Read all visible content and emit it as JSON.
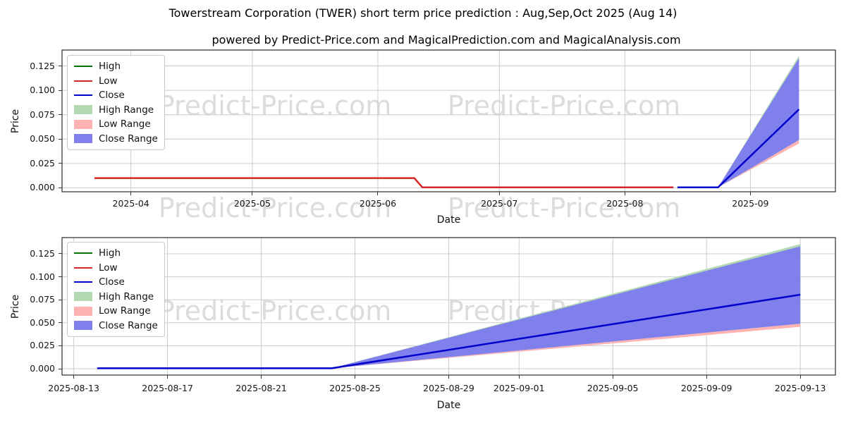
{
  "title": "Towerstream Corporation (TWER) short term price prediction : Aug,Sep,Oct 2025 (Aug 14)",
  "subtitle": "powered by Predict-Price.com and MagicalPrediction.com and MagicalAnalysis.com",
  "watermark": {
    "text": "Predict-Price.com",
    "color": "#dcdcdc"
  },
  "colors": {
    "high_line": "#007000",
    "low_line": "#d62728",
    "close_line": "#0000cd",
    "high_range_fill": "#b2d9b2",
    "low_range_fill": "#ffb2b2",
    "close_range_fill": "#7f80eb",
    "grid": "#cccccc",
    "frame": "#2b2b2b"
  },
  "legend": {
    "items": [
      {
        "label": "High",
        "type": "line",
        "color": "#007000"
      },
      {
        "label": "Low",
        "type": "line",
        "color": "#d62728"
      },
      {
        "label": "Close",
        "type": "line",
        "color": "#0000cd"
      },
      {
        "label": "High Range",
        "type": "patch",
        "color": "#b2d9b2"
      },
      {
        "label": "Low Range",
        "type": "patch",
        "color": "#ffb2b2"
      },
      {
        "label": "Close Range",
        "type": "patch",
        "color": "#7f80eb"
      }
    ]
  },
  "chart_data": [
    {
      "type": "line",
      "name": "history-and-prediction",
      "xlabel": "Date",
      "ylabel": "Price",
      "grid": true,
      "legend_position": "upper left",
      "xlim": [
        "2025-03-15",
        "2025-09-22"
      ],
      "ylim": [
        -0.004,
        0.1413
      ],
      "xticks": [
        {
          "date": "2025-04-01",
          "label": "2025-04"
        },
        {
          "date": "2025-05-01",
          "label": "2025-05"
        },
        {
          "date": "2025-06-01",
          "label": "2025-06"
        },
        {
          "date": "2025-07-01",
          "label": "2025-07"
        },
        {
          "date": "2025-08-01",
          "label": "2025-08"
        },
        {
          "date": "2025-09-01",
          "label": "2025-09"
        }
      ],
      "yticks": [
        {
          "value": 0.0,
          "label": "0.000"
        },
        {
          "value": 0.025,
          "label": "0.025"
        },
        {
          "value": 0.05,
          "label": "0.050"
        },
        {
          "value": 0.075,
          "label": "0.075"
        },
        {
          "value": 0.1,
          "label": "0.100"
        },
        {
          "value": 0.125,
          "label": "0.125"
        }
      ],
      "bands": [
        {
          "name": "Low Range",
          "color": "#ffb2b2",
          "upper": [
            [
              "2025-08-24",
              0.0005
            ],
            [
              "2025-09-13",
              0.049
            ]
          ],
          "lower": [
            [
              "2025-08-24",
              0.0005
            ],
            [
              "2025-09-13",
              0.0455
            ]
          ]
        },
        {
          "name": "High Range",
          "color": "#b2d9b2",
          "upper": [
            [
              "2025-08-24",
              0.0005
            ],
            [
              "2025-09-13",
              0.1355
            ]
          ],
          "lower": [
            [
              "2025-08-24",
              0.0005
            ],
            [
              "2025-09-13",
              0.049
            ]
          ]
        },
        {
          "name": "Close Range",
          "color": "#7f80eb",
          "upper": [
            [
              "2025-08-24",
              0.0005
            ],
            [
              "2025-09-13",
              0.133
            ]
          ],
          "lower": [
            [
              "2025-08-24",
              0.0005
            ],
            [
              "2025-09-13",
              0.049
            ]
          ]
        }
      ],
      "series": [
        {
          "name": "Low",
          "color": "#d62728",
          "points": [
            [
              "2025-03-23",
              0.01
            ],
            [
              "2025-06-10",
              0.01
            ],
            [
              "2025-06-12",
              0.0005
            ],
            [
              "2025-08-13",
              0.0005
            ]
          ]
        },
        {
          "name": "Close",
          "color": "#0000cd",
          "points": [
            [
              "2025-08-14",
              0.0005
            ],
            [
              "2025-08-24",
              0.0005
            ],
            [
              "2025-09-13",
              0.0805
            ]
          ]
        }
      ]
    },
    {
      "type": "line",
      "name": "prediction-zoom",
      "xlabel": "Date",
      "ylabel": "Price",
      "grid": true,
      "legend_position": "upper left",
      "xlim": [
        "2025-08-12T12:00",
        "2025-09-14T12:00"
      ],
      "ylim": [
        -0.0069,
        0.1426
      ],
      "xticks": [
        {
          "date": "2025-08-13",
          "label": "2025-08-13"
        },
        {
          "date": "2025-08-17",
          "label": "2025-08-17"
        },
        {
          "date": "2025-08-21",
          "label": "2025-08-21"
        },
        {
          "date": "2025-08-25",
          "label": "2025-08-25"
        },
        {
          "date": "2025-08-29",
          "label": "2025-08-29"
        },
        {
          "date": "2025-09-01",
          "label": "2025-09-01"
        },
        {
          "date": "2025-09-05",
          "label": "2025-09-05"
        },
        {
          "date": "2025-09-09",
          "label": "2025-09-09"
        },
        {
          "date": "2025-09-13",
          "label": "2025-09-13"
        }
      ],
      "yticks": [
        {
          "value": 0.0,
          "label": "0.000"
        },
        {
          "value": 0.025,
          "label": "0.025"
        },
        {
          "value": 0.05,
          "label": "0.050"
        },
        {
          "value": 0.075,
          "label": "0.075"
        },
        {
          "value": 0.1,
          "label": "0.100"
        },
        {
          "value": 0.125,
          "label": "0.125"
        }
      ],
      "bands": [
        {
          "name": "Low Range",
          "color": "#ffb2b2",
          "upper": [
            [
              "2025-08-24",
              0.0005
            ],
            [
              "2025-09-13",
              0.049
            ]
          ],
          "lower": [
            [
              "2025-08-24",
              0.0005
            ],
            [
              "2025-09-13",
              0.0455
            ]
          ]
        },
        {
          "name": "High Range",
          "color": "#b2d9b2",
          "upper": [
            [
              "2025-08-24",
              0.0005
            ],
            [
              "2025-09-13",
              0.1355
            ]
          ],
          "lower": [
            [
              "2025-08-24",
              0.0005
            ],
            [
              "2025-09-13",
              0.049
            ]
          ]
        },
        {
          "name": "Close Range",
          "color": "#7f80eb",
          "upper": [
            [
              "2025-08-24",
              0.0005
            ],
            [
              "2025-09-13",
              0.133
            ]
          ],
          "lower": [
            [
              "2025-08-24",
              0.0005
            ],
            [
              "2025-09-13",
              0.049
            ]
          ]
        }
      ],
      "series": [
        {
          "name": "Close",
          "color": "#0000cd",
          "points": [
            [
              "2025-08-14",
              0.0005
            ],
            [
              "2025-08-24",
              0.0005
            ],
            [
              "2025-09-13",
              0.0805
            ]
          ]
        }
      ]
    }
  ]
}
